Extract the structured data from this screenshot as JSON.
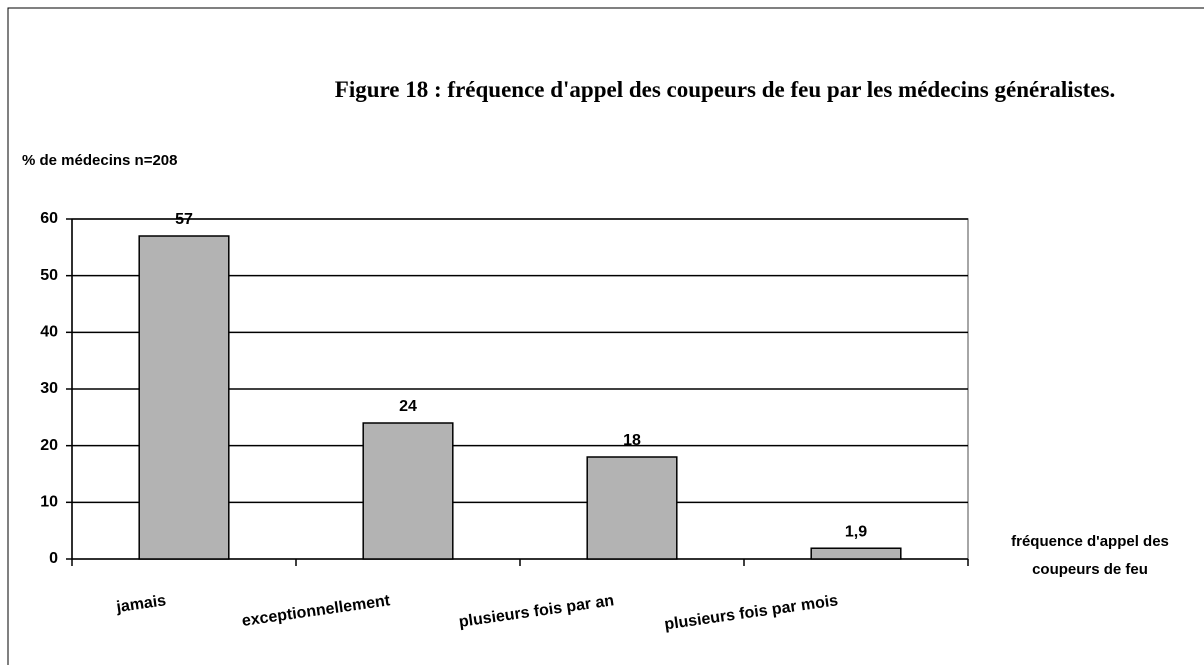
{
  "chart_data": {
    "type": "bar",
    "title": "Figure 18 : fréquence d'appel des coupeurs de feu par les médecins généralistes.",
    "y_label": "% de médecins n=208",
    "x_label": "fréquence d'appel des coupeurs de feu",
    "categories": [
      "jamais",
      "exceptionnellement",
      "plusieurs fois par an",
      "plusieurs fois par mois"
    ],
    "values": [
      57,
      24,
      18,
      1.9
    ],
    "value_labels": [
      "57",
      "24",
      "18",
      "1,9"
    ],
    "color": "#b3b3b3",
    "ylim": [
      0,
      60
    ],
    "yticks": [
      0,
      10,
      20,
      30,
      40,
      50,
      60
    ],
    "grid": true
  }
}
